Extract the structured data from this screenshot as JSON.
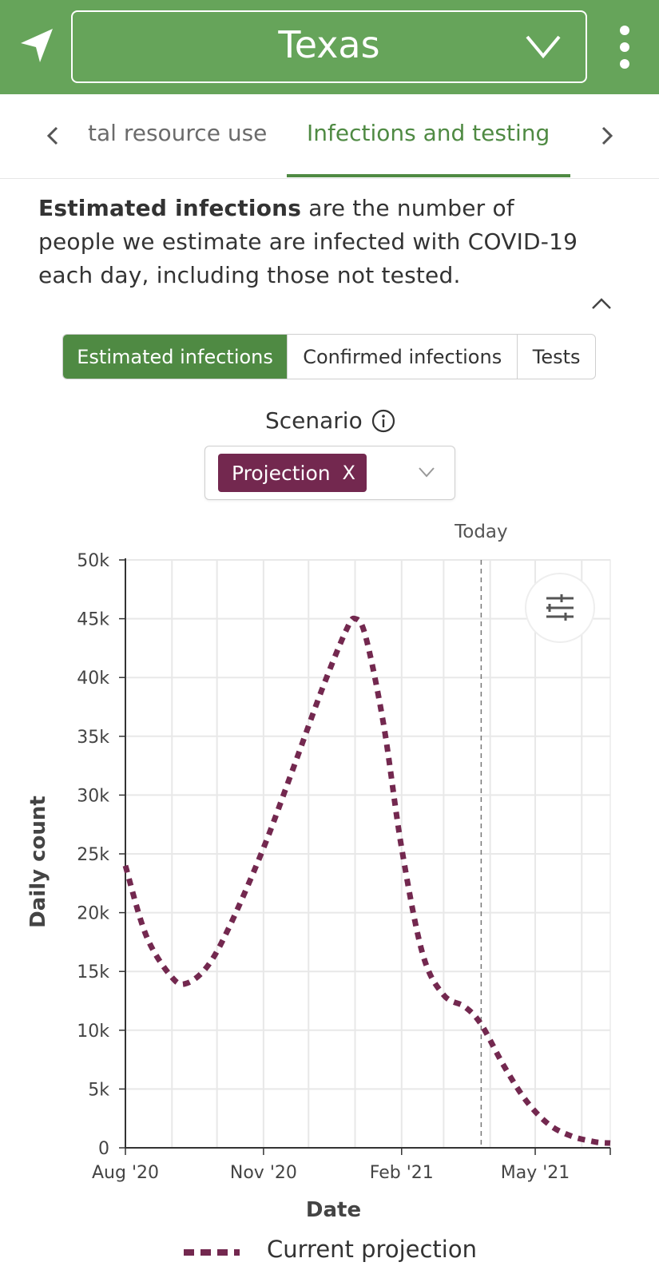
{
  "header": {
    "state": "Texas",
    "location_icon": "navigation-arrow-icon",
    "menu_icon": "more-vertical-icon",
    "dropdown_icon": "chevron-down-icon",
    "color": "#66a45a"
  },
  "tabs": {
    "previous_partial": "tal resource use",
    "active": "Infections and testing",
    "accent": "#4f8a43"
  },
  "description": {
    "bold": "Estimated infections",
    "rest": " are the number of people we estimate are infected with COVID-19 each day, including those not tested."
  },
  "segments": [
    {
      "label": "Estimated infections",
      "selected": true
    },
    {
      "label": "Confirmed infections",
      "selected": false
    },
    {
      "label": "Tests",
      "selected": false
    }
  ],
  "scenario": {
    "label": "Scenario",
    "chip": "Projection",
    "chip_close": "X",
    "chip_color": "#73284f"
  },
  "chart_data": {
    "type": "line",
    "xlabel": "Date",
    "ylabel": "Daily count",
    "ylim": [
      0,
      50000
    ],
    "y_ticks": [
      "0",
      "5k",
      "10k",
      "15k",
      "20k",
      "25k",
      "30k",
      "35k",
      "40k",
      "45k",
      "50k"
    ],
    "x_ticks": [
      "Aug '20",
      "Nov '20",
      "Feb '21",
      "May '21"
    ],
    "today_label": "Today",
    "today_date": "2021-03-26",
    "grid": true,
    "settings_icon": "sliders-icon",
    "series": [
      {
        "name": "Current projection",
        "color": "#73284f",
        "style": "dashed",
        "points": [
          [
            "2020-08-01",
            24000
          ],
          [
            "2020-08-15",
            18000
          ],
          [
            "2020-09-01",
            14500
          ],
          [
            "2020-09-11",
            14000
          ],
          [
            "2020-09-25",
            15500
          ],
          [
            "2020-10-10",
            19000
          ],
          [
            "2020-11-01",
            25500
          ],
          [
            "2020-11-20",
            32000
          ],
          [
            "2020-12-10",
            39000
          ],
          [
            "2020-12-26",
            44000
          ],
          [
            "2021-01-01",
            45000
          ],
          [
            "2021-01-08",
            43500
          ],
          [
            "2021-01-20",
            36000
          ],
          [
            "2021-02-01",
            25500
          ],
          [
            "2021-02-15",
            16500
          ],
          [
            "2021-03-01",
            13000
          ],
          [
            "2021-03-15",
            12000
          ],
          [
            "2021-03-26",
            10500
          ],
          [
            "2021-04-10",
            7000
          ],
          [
            "2021-04-25",
            4000
          ],
          [
            "2021-05-10",
            2000
          ],
          [
            "2021-05-25",
            1000
          ],
          [
            "2021-06-10",
            500
          ],
          [
            "2021-06-20",
            400
          ]
        ]
      }
    ],
    "legend_position": "bottom"
  }
}
